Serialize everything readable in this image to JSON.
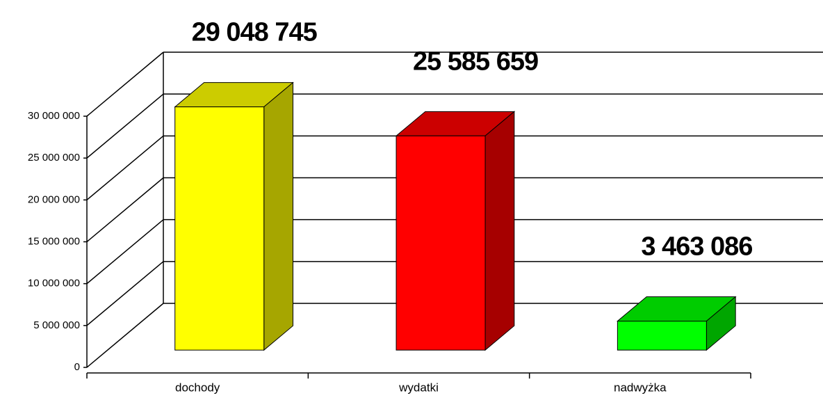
{
  "chart_data": {
    "type": "bar3d",
    "categories": [
      "dochody",
      "wydatki",
      "nadwyżka"
    ],
    "values": [
      29048745,
      25585659,
      3463086
    ],
    "value_labels": [
      "29 048 745",
      "25 585 659",
      "3 463 086"
    ],
    "colors": [
      "#ffff00",
      "#ff0000",
      "#00ff00"
    ],
    "ylim": [
      0,
      30000000
    ],
    "yticks": [
      0,
      {
        "value": 5000000,
        "label": "5 000 000"
      },
      {
        "value": 10000000,
        "label": "10 000 000"
      },
      {
        "value": 15000000,
        "label": "15 000 000"
      },
      {
        "value": 20000000,
        "label": "20 000 000"
      },
      {
        "value": 25000000,
        "label": "25 000 000"
      },
      {
        "value": 30000000,
        "label": "30 000 000"
      }
    ],
    "grid": true
  }
}
